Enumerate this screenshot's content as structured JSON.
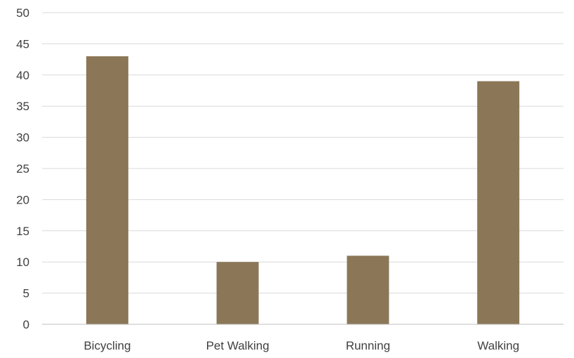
{
  "chart_data": {
    "type": "bar",
    "title": "",
    "xlabel": "",
    "ylabel": "",
    "categories": [
      "Bicycling",
      "Pet Walking",
      "Running",
      "Walking"
    ],
    "values": [
      43,
      10,
      11,
      39
    ],
    "ylim": [
      0,
      50
    ],
    "yticks": [
      0,
      5,
      10,
      15,
      20,
      25,
      30,
      35,
      40,
      45,
      50
    ],
    "grid": true,
    "legend": "none",
    "colors": {
      "bar": "#8B7757",
      "grid": "#D9D9D9",
      "axis": "#BFBFBF",
      "text": "#404040"
    }
  }
}
